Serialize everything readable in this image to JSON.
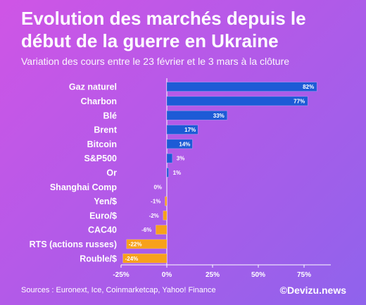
{
  "header": {
    "title": "Evolution des marchés depuis le début de la guerre en Ukraine",
    "subtitle": "Variation des cours entre le 23 février et le 3 mars à la clôture"
  },
  "footer": {
    "sources": "Sources : Euronext, Ice, Coinmarketcap, Yahoo! Finance",
    "brand": "©Devizu.news"
  },
  "colors": {
    "positive": "#1d5bd6",
    "negative": "#f7a11b",
    "axis": "#ffffff",
    "label_text": "#ffffff"
  },
  "chart_data": {
    "type": "bar",
    "orientation": "horizontal",
    "categories": [
      "Gaz naturel",
      "Charbon",
      "Blé",
      "Brent",
      "Bitcoin",
      "S&P500",
      "Or",
      "Shanghai Comp",
      "Yen/$",
      "Euro/$",
      "CAC40",
      "RTS (actions russes)",
      "Rouble/$"
    ],
    "values": [
      82,
      77,
      33,
      17,
      14,
      3,
      1,
      0,
      -1,
      -2,
      -6,
      -22,
      -24
    ],
    "data_labels": [
      "82%",
      "77%",
      "33%",
      "17%",
      "14%",
      "3%",
      "1%",
      "0%",
      "-1%",
      "-2%",
      "-6%",
      "-22%",
      "-24%"
    ],
    "xlim": [
      -25,
      82
    ],
    "xticks": [
      -25,
      0,
      25,
      50,
      75
    ],
    "xtick_labels": [
      "-25%",
      "0%",
      "25%",
      "50%",
      "75%"
    ],
    "grid": false
  }
}
